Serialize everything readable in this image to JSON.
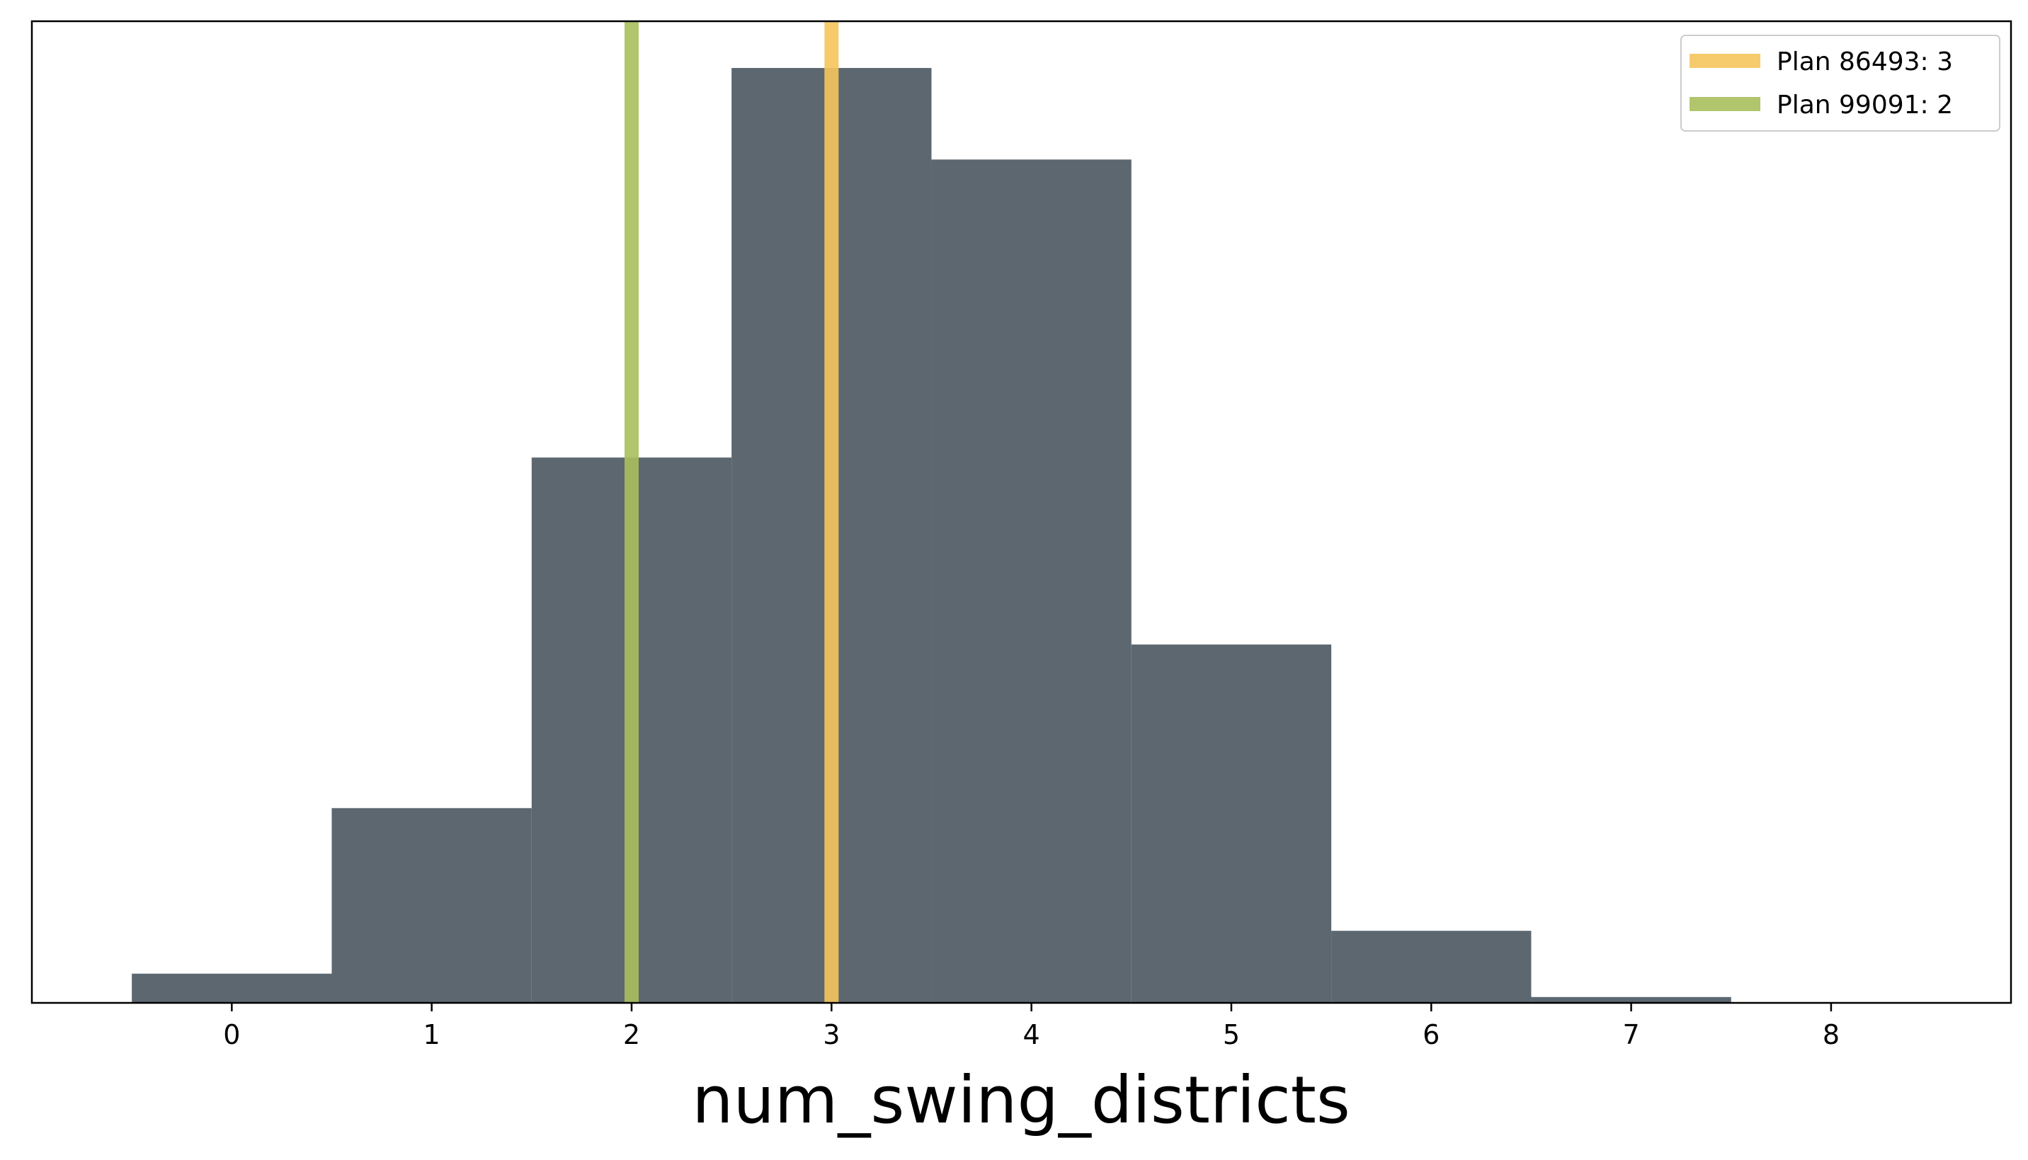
{
  "chart_data": {
    "type": "bar",
    "subtype": "histogram",
    "xlabel": "num_swing_districts",
    "ylabel": "",
    "bins": [
      {
        "center": 0,
        "value": 1.5
      },
      {
        "center": 1,
        "value": 10
      },
      {
        "center": 2,
        "value": 28
      },
      {
        "center": 3,
        "value": 48
      },
      {
        "center": 4,
        "value": 43.3
      },
      {
        "center": 5,
        "value": 18.4
      },
      {
        "center": 6,
        "value": 3.7
      },
      {
        "center": 7,
        "value": 0.3
      }
    ],
    "bin_width": 1,
    "xlim": [
      -1,
      8.9
    ],
    "ylim": [
      0,
      50.4
    ],
    "xticks": [
      0,
      1,
      2,
      3,
      4,
      5,
      6,
      7,
      8
    ],
    "y_ticks_shown": false,
    "bar_color": "#5c6770",
    "grid": false,
    "legend_position": "top-right",
    "markers": [
      {
        "label": "Plan 86493: 3",
        "x": 3,
        "color": "#f5c55c"
      },
      {
        "label": "Plan 99091: 2",
        "x": 2,
        "color": "#a9bf5c"
      }
    ]
  }
}
